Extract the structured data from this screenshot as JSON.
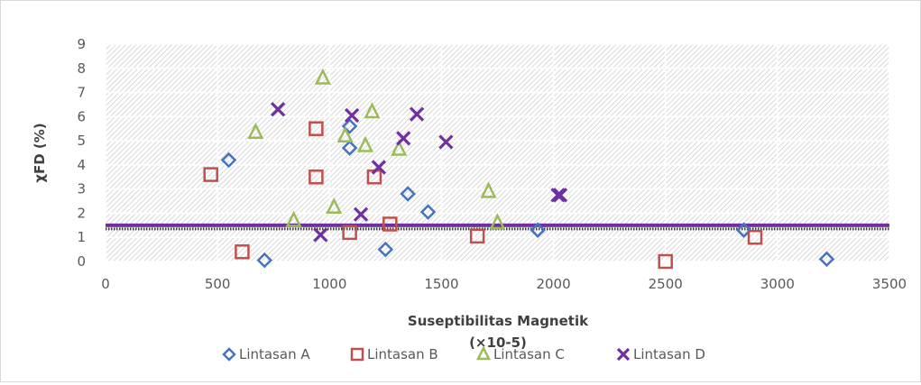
{
  "chart_data": {
    "type": "scatter",
    "title": "",
    "xlabel": "Suseptibilitas Magnetik",
    "xlabel_unit": "(×10-5)",
    "ylabel": "χFD (%)",
    "xlim": [
      0,
      3500
    ],
    "ylim": [
      0,
      9
    ],
    "xticks": [
      "0",
      "500",
      "1000",
      "1500",
      "2000",
      "2500",
      "3000",
      "3500"
    ],
    "yticks": [
      "0",
      "1",
      "2",
      "3",
      "4",
      "5",
      "6",
      "7",
      "8",
      "9"
    ],
    "legend_position": "bottom",
    "background_pattern": "diagonal hatch",
    "reference_line": {
      "y": 1.5,
      "color": "#7030a0"
    },
    "series": [
      {
        "name": "Lintasan A",
        "marker": "diamond",
        "color": "#4472c4",
        "points": [
          [
            550,
            4.2
          ],
          [
            710,
            0.05
          ],
          [
            1090,
            5.6
          ],
          [
            1090,
            4.7
          ],
          [
            1250,
            0.5
          ],
          [
            1350,
            2.8
          ],
          [
            1440,
            2.05
          ],
          [
            1930,
            1.3
          ],
          [
            2850,
            1.3
          ],
          [
            3220,
            0.1
          ]
        ]
      },
      {
        "name": "Lintasan B",
        "marker": "square",
        "color": "#c0504d",
        "points": [
          [
            470,
            3.6
          ],
          [
            610,
            0.4
          ],
          [
            940,
            5.5
          ],
          [
            940,
            3.5
          ],
          [
            1090,
            1.2
          ],
          [
            1200,
            3.5
          ],
          [
            1270,
            1.55
          ],
          [
            1660,
            1.05
          ],
          [
            2500,
            0.0
          ],
          [
            2900,
            1.0
          ]
        ]
      },
      {
        "name": "Lintasan C",
        "marker": "triangle",
        "color": "#9bbb59",
        "points": [
          [
            670,
            5.35
          ],
          [
            840,
            1.7
          ],
          [
            970,
            7.6
          ],
          [
            1020,
            2.25
          ],
          [
            1070,
            5.2
          ],
          [
            1160,
            4.8
          ],
          [
            1190,
            6.2
          ],
          [
            1310,
            4.65
          ],
          [
            1710,
            2.9
          ],
          [
            1750,
            1.6
          ]
        ]
      },
      {
        "name": "Lintasan D",
        "marker": "x",
        "color": "#7030a0",
        "points": [
          [
            770,
            6.3
          ],
          [
            960,
            1.1
          ],
          [
            1100,
            6.05
          ],
          [
            1140,
            1.95
          ],
          [
            1220,
            3.9
          ],
          [
            1330,
            5.1
          ],
          [
            1390,
            6.1
          ],
          [
            1520,
            4.95
          ],
          [
            2020,
            2.75
          ],
          [
            2030,
            2.75
          ]
        ]
      }
    ]
  }
}
